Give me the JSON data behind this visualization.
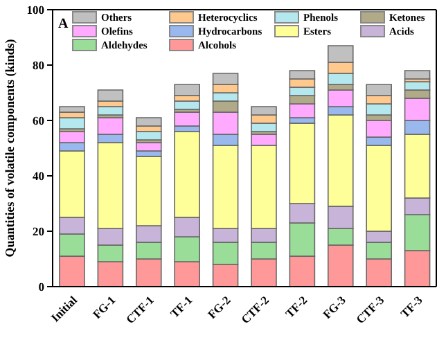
{
  "chart_data": {
    "type": "bar",
    "stacked": true,
    "ylabel": "Quantities of volatile components (kinds)",
    "annotations": [
      "A"
    ],
    "categories": [
      "Initial",
      "FG-1",
      "CTF-1",
      "TF-1",
      "FG-2",
      "CTF-2",
      "TF-2",
      "FG-3",
      "CTF-3",
      "TF-3"
    ],
    "series": [
      {
        "name": "Alcohols",
        "color": "#ff9999",
        "values": [
          11,
          9,
          10,
          9,
          8,
          10,
          11,
          15,
          10,
          13
        ]
      },
      {
        "name": "Aldehydes",
        "color": "#99dd99",
        "values": [
          8,
          6,
          6,
          9,
          8,
          6,
          12,
          6,
          6,
          13
        ]
      },
      {
        "name": "Acids",
        "color": "#c8b4d8",
        "values": [
          6,
          6,
          6,
          7,
          5,
          5,
          7,
          8,
          4,
          6
        ]
      },
      {
        "name": "Esters",
        "color": "#ffff99",
        "values": [
          24,
          31,
          25,
          31,
          30,
          30,
          29,
          33,
          31,
          23
        ]
      },
      {
        "name": "Hydrocarbons",
        "color": "#99b8ee",
        "values": [
          3,
          3,
          2,
          2,
          4,
          0,
          2,
          3,
          3,
          5
        ]
      },
      {
        "name": "Olefins",
        "color": "#ffaaff",
        "values": [
          4,
          6,
          3,
          5,
          8,
          4,
          5,
          6,
          6,
          8
        ]
      },
      {
        "name": "Ketones",
        "color": "#b0aa88",
        "values": [
          1,
          1,
          1,
          1,
          4,
          1,
          3,
          2,
          2,
          3
        ]
      },
      {
        "name": "Phenols",
        "color": "#b4e8ee",
        "values": [
          4,
          3,
          3,
          3,
          3,
          3,
          3,
          4,
          4,
          3
        ]
      },
      {
        "name": "Heterocyclics",
        "color": "#ffc88c",
        "values": [
          2,
          2,
          2,
          2,
          3,
          3,
          3,
          4,
          3,
          1
        ]
      },
      {
        "name": "Others",
        "color": "#c0c0c0",
        "values": [
          2,
          4,
          3,
          4,
          4,
          3,
          3,
          6,
          4,
          3
        ]
      }
    ],
    "ylim": [
      0,
      100
    ],
    "yticks": [
      0,
      20,
      40,
      60,
      80,
      100
    ],
    "grid": false,
    "legend": "top left"
  }
}
